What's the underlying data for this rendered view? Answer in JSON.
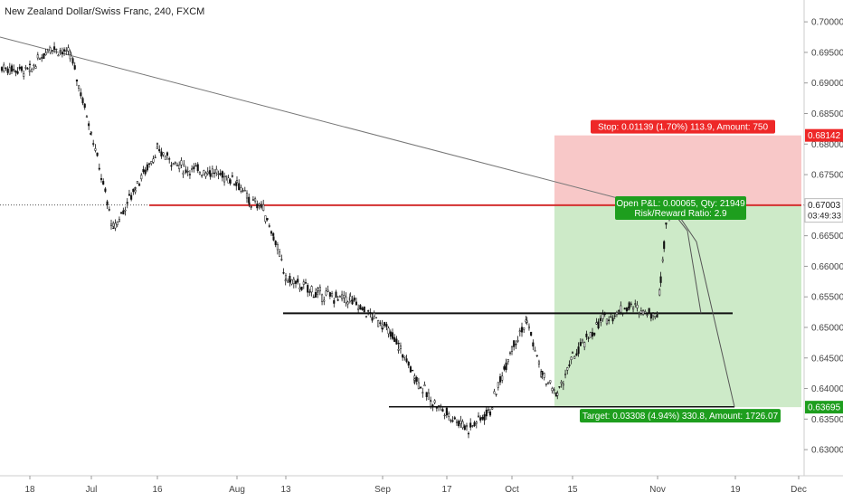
{
  "header": {
    "symbol_title": "New Zealand Dollar/Swiss Franc, 240, FXCM"
  },
  "chart_data": {
    "type": "candlestick",
    "ylim": [
      0.6275,
      0.7015
    ],
    "y_ticks": [
      "0.70000",
      "0.69500",
      "0.69000",
      "0.68500",
      "0.68000",
      "0.67500",
      "0.67000",
      "0.66500",
      "0.66000",
      "0.65500",
      "0.65000",
      "0.64500",
      "0.64000",
      "0.63500",
      "0.63000"
    ],
    "x_ticks": [
      "18",
      "Jul",
      "16",
      "Aug",
      "13",
      "Sep",
      "17",
      "Oct",
      "15",
      "Nov",
      "19",
      "Dec"
    ],
    "price_path": [
      [
        "18",
        0.692
      ],
      [
        "18",
        0.696
      ],
      [
        "18",
        0.6945
      ],
      [
        "Jul",
        0.682
      ],
      [
        "Jul",
        0.666
      ],
      [
        "Jul",
        0.673
      ],
      [
        "16",
        0.679
      ],
      [
        "16",
        0.676
      ],
      [
        "16",
        0.6755
      ],
      [
        "Aug",
        0.674
      ],
      [
        "Aug",
        0.6705
      ],
      [
        "Aug",
        0.67
      ],
      [
        "Aug",
        0.665
      ],
      [
        "13",
        0.658
      ],
      [
        "13",
        0.6555
      ],
      [
        "13",
        0.6545
      ],
      [
        "Sep",
        0.6505
      ],
      [
        "Sep",
        0.647
      ],
      [
        "Sep",
        0.642
      ],
      [
        "Sep",
        0.638
      ],
      [
        "17",
        0.636
      ],
      [
        "17",
        0.6335
      ],
      [
        "17",
        0.6365
      ],
      [
        "Oct",
        0.647
      ],
      [
        "Oct",
        0.651
      ],
      [
        "Oct",
        0.642
      ],
      [
        "Oct",
        0.639
      ],
      [
        "15",
        0.645
      ],
      [
        "15",
        0.651
      ],
      [
        "15",
        0.6535
      ],
      [
        "Nov",
        0.652
      ],
      [
        "Nov",
        0.658
      ],
      [
        "Nov",
        0.664
      ],
      [
        "Nov",
        0.6695
      ],
      [
        "Nov",
        0.6675
      ]
    ],
    "current_price": "0.67003",
    "countdown": "03:49:33",
    "stop_price": "0.68142",
    "target_price": "0.63695",
    "levels": {
      "red_resistance": 0.67,
      "black_support_upper": 0.6523,
      "black_support_lower": 0.637
    },
    "position": {
      "entry": 0.67,
      "stop": 0.68142,
      "target": 0.63695,
      "stop_label": "Stop: 0.01139 (1.70%) 113.9, Amount: 750",
      "target_label": "Target: 0.03308 (4.94%) 330.8, Amount: 1726.07",
      "pnl_label": "Open P&L: 0.00065, Qty: 21949",
      "rr_label": "Risk/Reward Ratio: 2.9"
    },
    "colors": {
      "stop_zone": "#f8c8c8",
      "target_zone": "#cdeac8",
      "stop_badge": "#ee2828",
      "target_badge": "#1e9e1e",
      "resistance_line": "#d32f2f",
      "candle": "#111111"
    }
  }
}
